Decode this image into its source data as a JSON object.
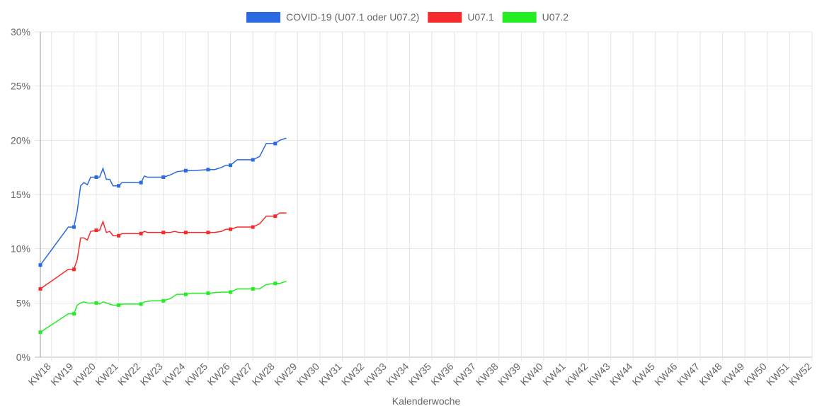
{
  "chart_data": {
    "type": "line",
    "x_label": "Kalenderwoche",
    "xlim": [
      17.5,
      52
    ],
    "ylim": [
      0,
      30
    ],
    "xticks": [
      {
        "value": 18,
        "label": "KW18"
      },
      {
        "value": 19,
        "label": "KW19"
      },
      {
        "value": 20,
        "label": "KW20"
      },
      {
        "value": 21,
        "label": "KW21"
      },
      {
        "value": 22,
        "label": "KW22"
      },
      {
        "value": 23,
        "label": "KW23"
      },
      {
        "value": 24,
        "label": "KW24"
      },
      {
        "value": 25,
        "label": "KW25"
      },
      {
        "value": 26,
        "label": "KW26"
      },
      {
        "value": 27,
        "label": "KW27"
      },
      {
        "value": 28,
        "label": "KW28"
      },
      {
        "value": 29,
        "label": "KW29"
      },
      {
        "value": 30,
        "label": "KW30"
      },
      {
        "value": 31,
        "label": "KW31"
      },
      {
        "value": 32,
        "label": "KW32"
      },
      {
        "value": 33,
        "label": "KW33"
      },
      {
        "value": 34,
        "label": "KW34"
      },
      {
        "value": 35,
        "label": "KW35"
      },
      {
        "value": 36,
        "label": "KW36"
      },
      {
        "value": 37,
        "label": "KW37"
      },
      {
        "value": 38,
        "label": "KW38"
      },
      {
        "value": 39,
        "label": "KW39"
      },
      {
        "value": 40,
        "label": "KW40"
      },
      {
        "value": 41,
        "label": "KW41"
      },
      {
        "value": 42,
        "label": "KW42"
      },
      {
        "value": 43,
        "label": "KW43"
      },
      {
        "value": 44,
        "label": "KW44"
      },
      {
        "value": 45,
        "label": "KW45"
      },
      {
        "value": 46,
        "label": "KW46"
      },
      {
        "value": 47,
        "label": "KW47"
      },
      {
        "value": 48,
        "label": "KW48"
      },
      {
        "value": 49,
        "label": "KW49"
      },
      {
        "value": 50,
        "label": "KW50"
      },
      {
        "value": 51,
        "label": "KW51"
      },
      {
        "value": 52,
        "label": "KW52"
      }
    ],
    "yticks": [
      {
        "value": 0,
        "label": "0%"
      },
      {
        "value": 5,
        "label": "5%"
      },
      {
        "value": 10,
        "label": "10%"
      },
      {
        "value": 15,
        "label": "15%"
      },
      {
        "value": 20,
        "label": "20%"
      },
      {
        "value": 25,
        "label": "25%"
      },
      {
        "value": 30,
        "label": "30%"
      }
    ],
    "grid": true,
    "legend": "top",
    "series": [
      {
        "name": "COVID-19 (U07.1 oder U07.2)",
        "color": "#2a6ae0",
        "x": [
          17.5,
          18.75,
          19,
          19.15,
          19.3,
          19.45,
          19.6,
          19.75,
          20,
          20.15,
          20.3,
          20.45,
          20.6,
          20.75,
          21,
          21.15,
          22,
          22.15,
          22.3,
          23,
          23.3,
          23.6,
          24,
          24.3,
          25,
          25.3,
          25.6,
          25.8,
          26,
          26.3,
          27,
          27.3,
          27.6,
          28,
          28.2,
          28.5
        ],
        "values": [
          8.5,
          12.0,
          12.0,
          13.5,
          15.8,
          16.1,
          15.9,
          16.6,
          16.6,
          16.6,
          17.4,
          16.4,
          16.4,
          15.8,
          15.8,
          16.1,
          16.1,
          16.7,
          16.6,
          16.6,
          16.8,
          17.1,
          17.2,
          17.2,
          17.3,
          17.3,
          17.5,
          17.7,
          17.7,
          18.2,
          18.2,
          18.5,
          19.7,
          19.7,
          20.0,
          20.2
        ]
      },
      {
        "name": "U07.1",
        "color": "#f52a2a",
        "x": [
          17.5,
          18.75,
          19,
          19.15,
          19.3,
          19.45,
          19.6,
          19.75,
          20,
          20.15,
          20.3,
          20.45,
          20.6,
          20.75,
          21,
          21.15,
          22,
          22.15,
          22.3,
          23,
          23.3,
          23.5,
          23.7,
          24,
          25,
          25.3,
          25.6,
          25.8,
          26,
          26.3,
          27,
          27.3,
          27.6,
          28,
          28.2,
          28.5
        ],
        "values": [
          6.3,
          8.1,
          8.1,
          9.0,
          11.0,
          11.0,
          10.8,
          11.6,
          11.7,
          11.7,
          12.5,
          11.5,
          11.6,
          11.2,
          11.2,
          11.4,
          11.4,
          11.6,
          11.5,
          11.5,
          11.5,
          11.6,
          11.5,
          11.5,
          11.5,
          11.5,
          11.6,
          11.8,
          11.8,
          12.0,
          12.0,
          12.3,
          13.0,
          13.0,
          13.3,
          13.3
        ]
      },
      {
        "name": "U07.2",
        "color": "#22ee22",
        "x": [
          17.5,
          18.75,
          19,
          19.15,
          19.3,
          19.45,
          19.6,
          20,
          20.15,
          20.3,
          20.6,
          20.75,
          21,
          21.15,
          22,
          22.15,
          22.5,
          23,
          23.3,
          23.6,
          24,
          24.3,
          25,
          25.6,
          26,
          26.3,
          27,
          27.3,
          27.6,
          28,
          28.2,
          28.5
        ],
        "values": [
          2.3,
          4.0,
          4.0,
          4.8,
          5.0,
          5.1,
          5.0,
          5.0,
          4.9,
          5.1,
          4.9,
          4.8,
          4.8,
          4.9,
          4.9,
          5.1,
          5.2,
          5.2,
          5.4,
          5.8,
          5.8,
          5.9,
          5.9,
          6.0,
          6.0,
          6.3,
          6.3,
          6.3,
          6.7,
          6.8,
          6.8,
          7.0
        ]
      }
    ]
  }
}
